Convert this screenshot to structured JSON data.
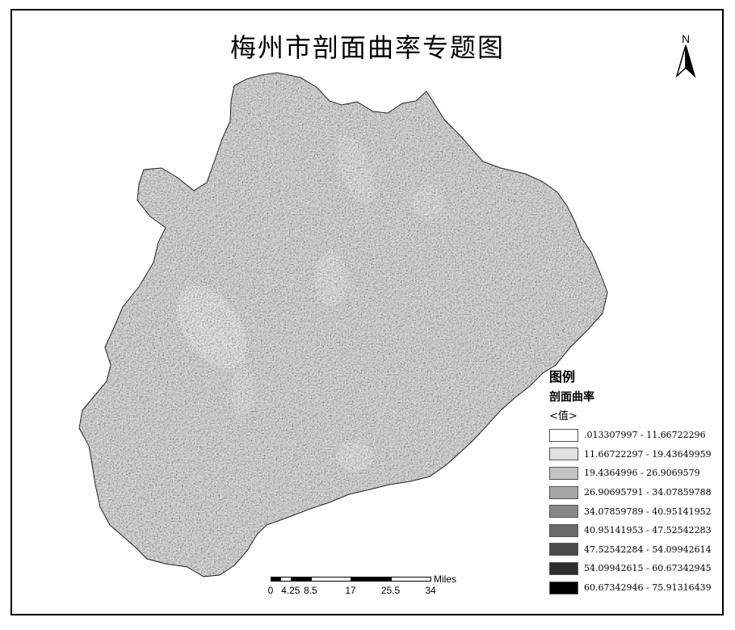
{
  "title": "梅州市剖面曲率专题图",
  "north_arrow": {
    "letter": "N"
  },
  "legend": {
    "title": "图例",
    "subtitle": "剖面曲率",
    "field": "<值>",
    "classes": [
      {
        "label": ".013307997 - 11.66722296",
        "color": "#ffffff"
      },
      {
        "label": "11.66722297 - 19.43649959",
        "color": "#e1e1e1"
      },
      {
        "label": "19.4364996 - 26.9069579",
        "color": "#c3c3c3"
      },
      {
        "label": "26.90695791 - 34.07859788",
        "color": "#a5a5a5"
      },
      {
        "label": "34.07859789 - 40.95141952",
        "color": "#878787"
      },
      {
        "label": "40.95141953 - 47.52542283",
        "color": "#696969"
      },
      {
        "label": "47.52542284 - 54.09942614",
        "color": "#4b4b4b"
      },
      {
        "label": "54.09942615 - 60.67342945",
        "color": "#2d2d2d"
      },
      {
        "label": "60.67342946 - 75.91316439",
        "color": "#000000"
      }
    ]
  },
  "scale_bar": {
    "units": "Miles",
    "ticks": [
      "0",
      "4.25",
      "8.5",
      "17",
      "25.5",
      "34"
    ],
    "tick_values": [
      0,
      4.25,
      8.5,
      17,
      25.5,
      34
    ]
  }
}
